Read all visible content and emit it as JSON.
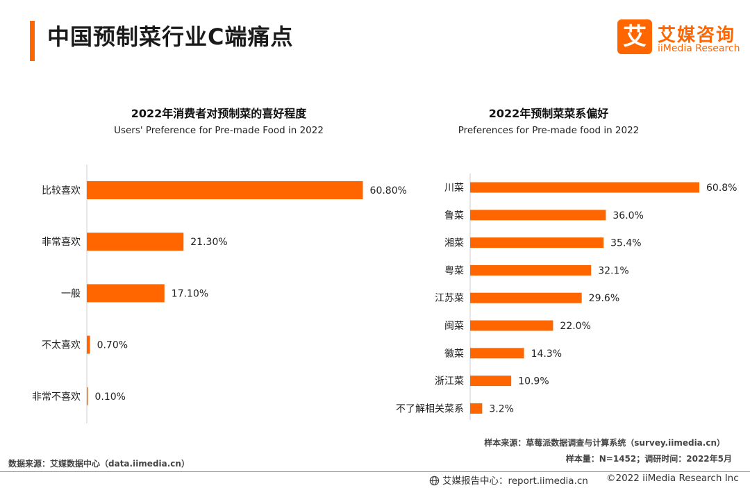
{
  "page": {
    "title": "中国预制菜行业C端痛点"
  },
  "brand": {
    "logo_char": "艾",
    "name_cn": "艾媒咨询",
    "name_en": "iiMedia Research"
  },
  "colors": {
    "accent": "#ff6600",
    "axis": "#cccccc",
    "text": "#222222"
  },
  "chart_data": [
    {
      "type": "bar",
      "orientation": "horizontal",
      "title": "2022年消费者对预制菜的喜好程度",
      "subtitle": "Users' Preference for Pre-made Food in 2022",
      "categories": [
        "比较喜欢",
        "非常喜欢",
        "一般",
        "不太喜欢",
        "非常不喜欢"
      ],
      "values": [
        60.8,
        21.3,
        17.1,
        0.7,
        0.1
      ],
      "value_labels": [
        "60.80%",
        "21.30%",
        "17.10%",
        "0.70%",
        "0.10%"
      ],
      "unit": "%",
      "xlim": [
        0,
        65
      ],
      "grid": false,
      "legend": "none"
    },
    {
      "type": "bar",
      "orientation": "horizontal",
      "title": "2022年预制菜菜系偏好",
      "subtitle": "Preferences for Pre-made food in 2022",
      "categories": [
        "川菜",
        "鲁菜",
        "湘菜",
        "粤菜",
        "江苏菜",
        "闽菜",
        "徽菜",
        "浙江菜",
        "不了解相关菜系"
      ],
      "values": [
        60.8,
        36.0,
        35.4,
        32.1,
        29.6,
        22.0,
        14.3,
        10.9,
        3.2
      ],
      "value_labels": [
        "60.8%",
        "36.0%",
        "35.4%",
        "32.1%",
        "29.6%",
        "22.0%",
        "14.3%",
        "10.9%",
        "3.2%"
      ],
      "unit": "%",
      "xlim": [
        0,
        60.8
      ],
      "grid": false,
      "legend": "none"
    }
  ],
  "notes": {
    "sample_source": "样本来源：草莓派数据调查与计算系统（survey.iimedia.cn）",
    "sample_size": "样本量：N=1452；调研时间：2022年5月",
    "data_source": "数据来源：艾媒数据中心（data.iimedia.cn）"
  },
  "footer": {
    "icon": "globe-icon",
    "report_center": "艾媒报告中心：report.iimedia.cn",
    "copyright": "©2022  iiMedia Research  Inc"
  }
}
